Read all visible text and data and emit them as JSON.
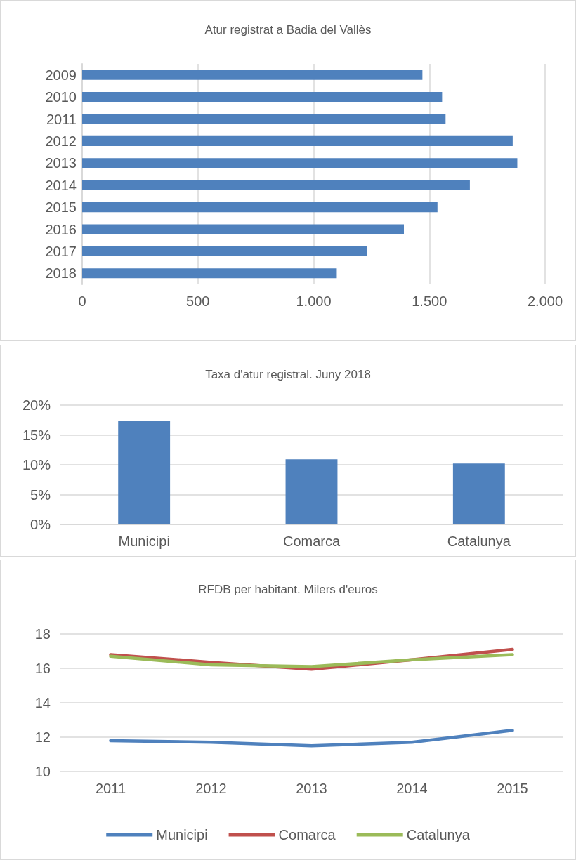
{
  "chart_data": [
    {
      "type": "bar",
      "title": "Atur registrat a Badia del Vallès",
      "orientation": "horizontal",
      "categories": [
        "2009",
        "2010",
        "2011",
        "2012",
        "2013",
        "2014",
        "2015",
        "2016",
        "2017",
        "2018"
      ],
      "values": [
        1470,
        1555,
        1570,
        1860,
        1880,
        1675,
        1535,
        1390,
        1230,
        1100
      ],
      "color": "#4f81bd",
      "xlim": [
        0,
        2000
      ],
      "xticks": [
        0,
        {
          "value": 500,
          "label": "500"
        },
        {
          "value": 1000,
          "label": "1.000"
        },
        {
          "value": 1500,
          "label": "1.500"
        },
        {
          "value": 2000,
          "label": "2.000"
        }
      ],
      "grid": "x",
      "legend": false
    },
    {
      "type": "bar",
      "title": "Taxa d'atur registral. Juny 2018",
      "categories": [
        "Municipi",
        "Comarca",
        "Catalunya"
      ],
      "values": [
        17.3,
        10.9,
        10.2
      ],
      "color": "#4f81bd",
      "ylim": [
        0,
        20
      ],
      "yticks": [
        {
          "value": 0,
          "label": "0%"
        },
        {
          "value": 5,
          "label": "5%"
        },
        {
          "value": 10,
          "label": "10%"
        },
        {
          "value": 15,
          "label": "15%"
        },
        {
          "value": 20,
          "label": "20%"
        }
      ],
      "grid": "y",
      "legend": false
    },
    {
      "type": "line",
      "title": "RFDB per habitant. Milers d'euros",
      "categories": [
        "2011",
        "2012",
        "2013",
        "2014",
        "2015"
      ],
      "series": [
        {
          "name": "Municipi",
          "color": "#4f81bd",
          "values": [
            11.8,
            11.7,
            11.5,
            11.7,
            12.4
          ]
        },
        {
          "name": "Comarca",
          "color": "#c0504d",
          "values": [
            16.8,
            16.35,
            15.95,
            16.5,
            17.1
          ]
        },
        {
          "name": "Catalunya",
          "color": "#9bbb59",
          "values": [
            16.7,
            16.2,
            16.1,
            16.5,
            16.8
          ]
        }
      ],
      "ylim": [
        10,
        18
      ],
      "yticks": [
        10,
        12,
        14,
        16,
        18
      ],
      "grid": "y",
      "legend": "bottom",
      "marker": "none",
      "line_style": "solid"
    }
  ]
}
